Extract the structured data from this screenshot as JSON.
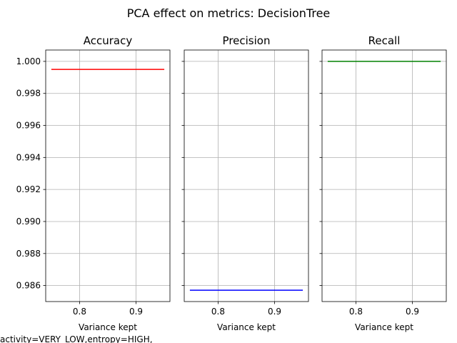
{
  "figure": {
    "suptitle": "PCA effect on metrics: DecisionTree",
    "footer_text": "activity=VERY_LOW,entropy=HIGH,"
  },
  "chart_data": [
    {
      "type": "line",
      "title": "Accuracy",
      "xlabel": "Variance kept",
      "ylabel": "",
      "x": [
        0.75,
        0.95
      ],
      "series": [
        {
          "name": "Accuracy",
          "values": [
            0.9995,
            0.9995
          ],
          "color": "#ff0000"
        }
      ],
      "xlim": [
        0.74,
        0.96
      ],
      "ylim": [
        0.985,
        1.00071
      ],
      "xticks": [
        0.8,
        0.9
      ],
      "xtick_labels": [
        "0.8",
        "0.9"
      ],
      "yticks": [
        0.986,
        0.988,
        0.99,
        0.992,
        0.994,
        0.996,
        0.998,
        1.0
      ],
      "ytick_labels": [
        "0.986",
        "0.988",
        "0.990",
        "0.992",
        "0.994",
        "0.996",
        "0.998",
        "1.000"
      ],
      "grid": true
    },
    {
      "type": "line",
      "title": "Precision",
      "xlabel": "Variance kept",
      "ylabel": "",
      "x": [
        0.75,
        0.95
      ],
      "series": [
        {
          "name": "Precision",
          "values": [
            0.98571,
            0.98571
          ],
          "color": "#0000ff"
        }
      ],
      "xlim": [
        0.74,
        0.96
      ],
      "ylim": [
        0.985,
        1.00071
      ],
      "xticks": [
        0.8,
        0.9
      ],
      "xtick_labels": [
        "0.8",
        "0.9"
      ],
      "yticks": [
        0.986,
        0.988,
        0.99,
        0.992,
        0.994,
        0.996,
        0.998,
        1.0
      ],
      "ytick_labels": [],
      "grid": true
    },
    {
      "type": "line",
      "title": "Recall",
      "xlabel": "Variance kept",
      "ylabel": "",
      "x": [
        0.75,
        0.95
      ],
      "series": [
        {
          "name": "Recall",
          "values": [
            1.0,
            1.0
          ],
          "color": "#008000"
        }
      ],
      "xlim": [
        0.74,
        0.96
      ],
      "ylim": [
        0.985,
        1.00071
      ],
      "xticks": [
        0.8,
        0.9
      ],
      "xtick_labels": [
        "0.8",
        "0.9"
      ],
      "yticks": [
        0.986,
        0.988,
        0.99,
        0.992,
        0.994,
        0.996,
        0.998,
        1.0
      ],
      "ytick_labels": [],
      "grid": true
    }
  ]
}
